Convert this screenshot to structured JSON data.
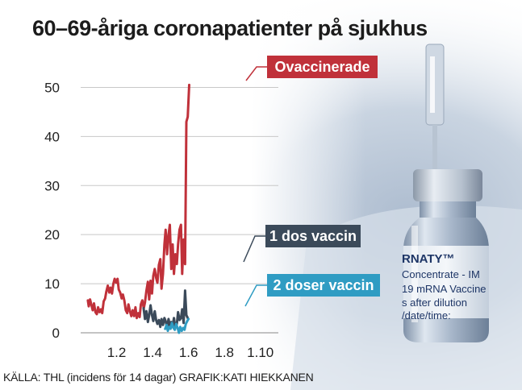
{
  "title": "60–69-åriga coronapatienter på sjukhus",
  "source": "KÄLLA: THL (incidens för 14 dagar) GRAFIK:KATI HIEKKANEN",
  "photo": {
    "vial_text": [
      "RNATY™",
      "Concentrate - IM",
      "19 mRNA Vaccine",
      "s after dilution",
      "/date/time:"
    ]
  },
  "chart_data": {
    "type": "line",
    "title": "60–69-åriga coronapatienter på sjukhus",
    "xlabel": "",
    "ylabel": "",
    "ylim": [
      0,
      55
    ],
    "xlim": [
      1.0,
      1.11
    ],
    "grid": true,
    "y_ticks": [
      0,
      10,
      20,
      30,
      40,
      50
    ],
    "x_ticks": [
      {
        "value": 1.02,
        "label": "1.2"
      },
      {
        "value": 1.04,
        "label": "1.4"
      },
      {
        "value": 1.06,
        "label": "1.6"
      },
      {
        "value": 1.08,
        "label": "1.8"
      },
      {
        "value": 1.1,
        "label": "1.10"
      }
    ],
    "series": [
      {
        "name": "Ovaccinerade",
        "color": "#c0313a",
        "points": [
          [
            1.004,
            6.6
          ],
          [
            1.0045,
            5.4
          ],
          [
            1.0052,
            6.8
          ],
          [
            1.006,
            5.6
          ],
          [
            1.0067,
            4.6
          ],
          [
            1.0074,
            6.0
          ],
          [
            1.0082,
            4.2
          ],
          [
            1.009,
            3.8
          ],
          [
            1.0097,
            5.2
          ],
          [
            1.0105,
            4.2
          ],
          [
            1.0113,
            4.8
          ],
          [
            1.012,
            4.0
          ],
          [
            1.0128,
            6.4
          ],
          [
            1.0136,
            7.0
          ],
          [
            1.0143,
            8.4
          ],
          [
            1.0151,
            9.6
          ],
          [
            1.0159,
            8.2
          ],
          [
            1.0166,
            9.2
          ],
          [
            1.0174,
            8.0
          ],
          [
            1.0182,
            10.0
          ],
          [
            1.0189,
            11.0
          ],
          [
            1.0197,
            10.2
          ],
          [
            1.0205,
            11.0
          ],
          [
            1.0212,
            8.8
          ],
          [
            1.022,
            8.2
          ],
          [
            1.0228,
            7.0
          ],
          [
            1.0235,
            7.8
          ],
          [
            1.0243,
            6.6
          ],
          [
            1.0251,
            4.6
          ],
          [
            1.0259,
            4.0
          ],
          [
            1.0266,
            5.8
          ],
          [
            1.0274,
            4.4
          ],
          [
            1.0282,
            3.4
          ],
          [
            1.0289,
            4.6
          ],
          [
            1.0297,
            3.4
          ],
          [
            1.0305,
            5.2
          ],
          [
            1.0312,
            3.0
          ],
          [
            1.032,
            4.0
          ],
          [
            1.0328,
            3.2
          ],
          [
            1.0335,
            5.8
          ],
          [
            1.0343,
            6.6
          ],
          [
            1.0351,
            5.0
          ],
          [
            1.0358,
            6.2
          ],
          [
            1.0366,
            8.6
          ],
          [
            1.0374,
            10.4
          ],
          [
            1.0381,
            6.8
          ],
          [
            1.0389,
            10.6
          ],
          [
            1.0397,
            8.0
          ],
          [
            1.0404,
            11.6
          ],
          [
            1.0412,
            13.0
          ],
          [
            1.042,
            11.2
          ],
          [
            1.0427,
            10.2
          ],
          [
            1.0435,
            13.8
          ],
          [
            1.0443,
            15.0
          ],
          [
            1.045,
            9.0
          ],
          [
            1.0458,
            12.0
          ],
          [
            1.0466,
            18.0
          ],
          [
            1.0473,
            21.0
          ],
          [
            1.0481,
            16.0
          ],
          [
            1.0489,
            20.0
          ],
          [
            1.0496,
            22.0
          ],
          [
            1.0504,
            13.0
          ],
          [
            1.0512,
            18.0
          ],
          [
            1.0519,
            12.0
          ],
          [
            1.0527,
            16.0
          ],
          [
            1.0535,
            14.0
          ],
          [
            1.0542,
            18.0
          ],
          [
            1.055,
            21.0
          ],
          [
            1.0558,
            22.0
          ],
          [
            1.0565,
            12.0
          ],
          [
            1.0573,
            19.0
          ],
          [
            1.0581,
            14.0
          ],
          [
            1.0588,
            43.0
          ],
          [
            1.0596,
            44.0
          ],
          [
            1.0604,
            50.5
          ]
        ]
      },
      {
        "name": "1 dos vaccin",
        "color": "#3b4a5a",
        "points": [
          [
            1.035,
            5.0
          ],
          [
            1.0358,
            2.8
          ],
          [
            1.0366,
            4.4
          ],
          [
            1.0374,
            2.2
          ],
          [
            1.0381,
            3.6
          ],
          [
            1.0389,
            5.6
          ],
          [
            1.0397,
            3.6
          ],
          [
            1.0404,
            2.4
          ],
          [
            1.0412,
            4.4
          ],
          [
            1.042,
            2.6
          ],
          [
            1.0427,
            1.8
          ],
          [
            1.0435,
            2.6
          ],
          [
            1.0443,
            1.2
          ],
          [
            1.045,
            2.8
          ],
          [
            1.0458,
            1.6
          ],
          [
            1.0466,
            3.0
          ],
          [
            1.0473,
            2.4
          ],
          [
            1.0481,
            1.0
          ],
          [
            1.0489,
            2.8
          ],
          [
            1.0496,
            1.4
          ],
          [
            1.0504,
            2.2
          ],
          [
            1.0512,
            1.4
          ],
          [
            1.0519,
            3.0
          ],
          [
            1.0527,
            1.0
          ],
          [
            1.0535,
            1.8
          ],
          [
            1.0542,
            4.2
          ],
          [
            1.055,
            2.6
          ],
          [
            1.0558,
            3.0
          ],
          [
            1.0565,
            4.8
          ],
          [
            1.0573,
            2.0
          ],
          [
            1.0581,
            8.6
          ],
          [
            1.0588,
            3.6
          ],
          [
            1.0596,
            3.0
          ]
        ]
      },
      {
        "name": "2 doser vaccin",
        "color": "#2f9cc3",
        "points": [
          [
            1.047,
            0.8
          ],
          [
            1.0478,
            1.6
          ],
          [
            1.0485,
            0.4
          ],
          [
            1.0493,
            1.2
          ],
          [
            1.05,
            0.8
          ],
          [
            1.0508,
            2.0
          ],
          [
            1.0516,
            1.0
          ],
          [
            1.0524,
            0.6
          ],
          [
            1.0531,
            1.8
          ],
          [
            1.0539,
            1.0
          ],
          [
            1.0547,
            0.0
          ],
          [
            1.0554,
            1.2
          ],
          [
            1.0562,
            0.4
          ],
          [
            1.057,
            1.0
          ],
          [
            1.0578,
            0.6
          ],
          [
            1.0585,
            1.8
          ],
          [
            1.0593,
            2.4
          ],
          [
            1.06,
            2.8
          ]
        ]
      }
    ],
    "labels": [
      {
        "text": "Ovaccinerade",
        "series": 0
      },
      {
        "text": "1 dos vaccin",
        "series": 1
      },
      {
        "text": "2 doser vaccin",
        "series": 2
      }
    ]
  }
}
